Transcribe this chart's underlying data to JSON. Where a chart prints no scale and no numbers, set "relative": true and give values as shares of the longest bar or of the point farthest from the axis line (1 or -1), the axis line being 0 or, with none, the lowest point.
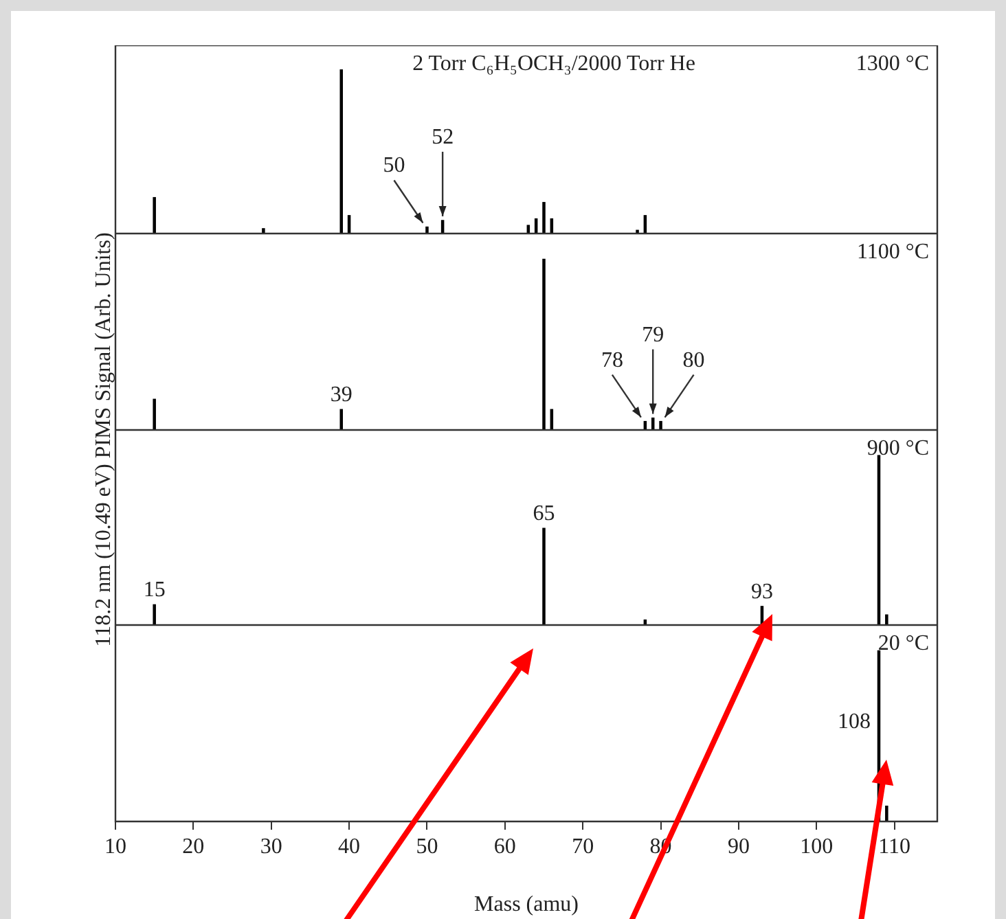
{
  "chart_data": [
    {
      "type": "bar",
      "title": "1300 °C",
      "subtitle": "2 Torr C₆H₅OCH₃/2000 Torr He",
      "ylabel": "118.2 nm (10.49 eV) PIMS Signal (Arb. Units)",
      "relative": true,
      "color": "#000000",
      "x": [
        15,
        29,
        39,
        40,
        50,
        52,
        63,
        64,
        65,
        66,
        77,
        78
      ],
      "values": [
        0.22,
        0.03,
        1,
        0.11,
        0.04,
        0.08,
        0.05,
        0.09,
        0.19,
        0.09,
        0.02,
        0.11
      ],
      "xlim": [
        10,
        115.5
      ],
      "xticks": [
        10,
        20,
        30,
        40,
        50,
        60,
        70,
        80,
        90,
        100,
        110
      ],
      "tick_labels": false,
      "annotations": [
        {
          "text": "50",
          "x": 50,
          "y": 0.04
        },
        {
          "text": "52",
          "x": 52,
          "y": 0.08
        }
      ]
    },
    {
      "type": "bar",
      "title": "1100 °C",
      "relative": true,
      "color": "#000000",
      "x": [
        15,
        39,
        65,
        66,
        78,
        79,
        80
      ],
      "values": [
        0.18,
        0.12,
        1,
        0.12,
        0.05,
        0.07,
        0.05
      ],
      "xlim": [
        10,
        115.5
      ],
      "xticks": [
        10,
        20,
        30,
        40,
        50,
        60,
        70,
        80,
        90,
        100,
        110
      ],
      "tick_labels": false,
      "annotations": [
        {
          "text": "39",
          "x": 39,
          "y": 0.12
        },
        {
          "text": "78",
          "x": 78,
          "y": 0.05
        },
        {
          "text": "79",
          "x": 79,
          "y": 0.07
        },
        {
          "text": "80",
          "x": 80,
          "y": 0.05
        }
      ]
    },
    {
      "type": "bar",
      "title": "900 °C",
      "relative": true,
      "color": "#000000",
      "x": [
        15,
        65,
        78,
        93,
        108,
        109
      ],
      "values": [
        0.12,
        0.57,
        0.03,
        0.11,
        1,
        0.06
      ],
      "xlim": [
        10,
        115.5
      ],
      "xticks": [
        10,
        20,
        30,
        40,
        50,
        60,
        70,
        80,
        90,
        100,
        110
      ],
      "tick_labels": false,
      "annotations": [
        {
          "text": "15",
          "x": 15,
          "y": 0.12
        },
        {
          "text": "65",
          "x": 65,
          "y": 0.57
        },
        {
          "text": "93",
          "x": 93,
          "y": 0.11
        }
      ]
    },
    {
      "type": "bar",
      "title": "20 °C",
      "xlabel": "Mass (amu)",
      "relative": true,
      "color": "#000000",
      "x": [
        108,
        109
      ],
      "values": [
        1,
        0.09
      ],
      "xlim": [
        10,
        115.5
      ],
      "xticks": [
        10,
        20,
        30,
        40,
        50,
        60,
        70,
        80,
        90,
        100,
        110
      ],
      "tick_labels": "x",
      "annotations": [
        {
          "text": "108",
          "x": 108,
          "y": 1
        }
      ]
    }
  ]
}
